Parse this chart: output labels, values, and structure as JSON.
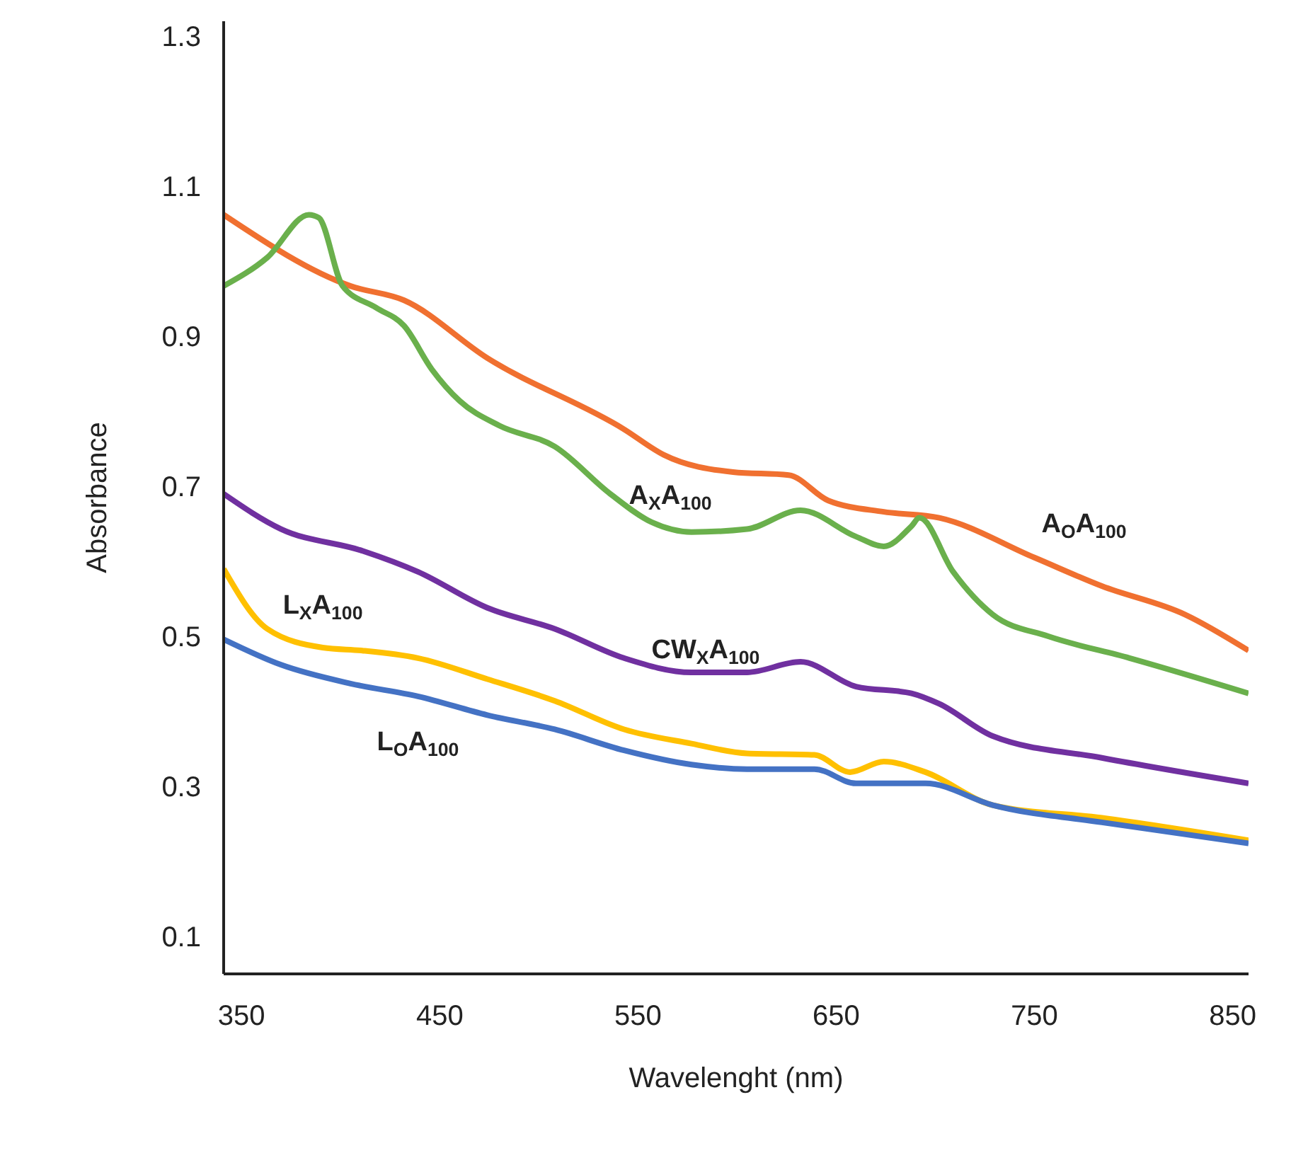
{
  "chart_data": {
    "type": "line",
    "xlabel": "Wavelenght (nm)",
    "ylabel": "Absorbance",
    "xlim": [
      341,
      858
    ],
    "ylim": [
      0.05,
      1.32
    ],
    "xticks": [
      350,
      450,
      550,
      650,
      750,
      850
    ],
    "yticks": [
      0.1,
      0.3,
      0.5,
      0.7,
      0.9,
      1.1,
      1.3
    ],
    "grid": false,
    "legend": false,
    "marker": "none",
    "line_style": "solid",
    "series": [
      {
        "name": "A$_{O}$A$_{100}$",
        "color": "#f07030",
        "x": [
          341,
          405,
          432,
          474,
          543,
          563,
          598,
          626,
          646,
          674,
          702,
          750,
          784,
          826,
          858
        ],
        "values": [
          1.062,
          0.967,
          0.948,
          0.871,
          0.776,
          0.742,
          0.719,
          0.715,
          0.681,
          0.666,
          0.658,
          0.605,
          0.567,
          0.529,
          0.481
        ]
      },
      {
        "name": "A$_{X}$A$_{100}$",
        "color": "#6ab04c",
        "x": [
          341,
          363,
          384,
          389,
          401,
          418,
          432,
          446,
          460,
          480,
          508,
          536,
          557,
          577,
          605,
          632,
          660,
          674,
          688,
          692,
          709,
          729,
          757,
          798,
          858
        ],
        "values": [
          0.967,
          1.005,
          1.062,
          1.058,
          0.967,
          0.938,
          0.914,
          0.856,
          0.814,
          0.781,
          0.753,
          0.69,
          0.652,
          0.639,
          0.643,
          0.668,
          0.633,
          0.62,
          0.647,
          0.658,
          0.586,
          0.529,
          0.5,
          0.471,
          0.424
        ]
      },
      {
        "name": "CW$_{X}$A$_{100}$",
        "color": "#7030a0",
        "x": [
          341,
          370,
          411,
          439,
          474,
          508,
          543,
          577,
          605,
          632,
          660,
          688,
          702,
          729,
          784,
          858
        ],
        "values": [
          0.69,
          0.643,
          0.614,
          0.586,
          0.538,
          0.51,
          0.471,
          0.452,
          0.452,
          0.466,
          0.433,
          0.424,
          0.41,
          0.367,
          0.338,
          0.304
        ]
      },
      {
        "name": "L$_{X}$A$_{100}$",
        "color": "#ffc000",
        "x": [
          341,
          363,
          391,
          411,
          439,
          474,
          508,
          543,
          577,
          605,
          639,
          657,
          674,
          695,
          729,
          784,
          858
        ],
        "values": [
          0.59,
          0.51,
          0.485,
          0.481,
          0.471,
          0.443,
          0.414,
          0.376,
          0.357,
          0.344,
          0.342,
          0.319,
          0.333,
          0.319,
          0.275,
          0.258,
          0.228
        ]
      },
      {
        "name": "L$_{O}$A$_{100}$",
        "color": "#4472c4",
        "x": [
          341,
          370,
          405,
          439,
          474,
          508,
          543,
          577,
          605,
          639,
          660,
          695,
          729,
          784,
          858
        ],
        "values": [
          0.496,
          0.462,
          0.437,
          0.42,
          0.395,
          0.376,
          0.348,
          0.329,
          0.323,
          0.323,
          0.304,
          0.304,
          0.275,
          0.252,
          0.224
        ]
      }
    ]
  }
}
